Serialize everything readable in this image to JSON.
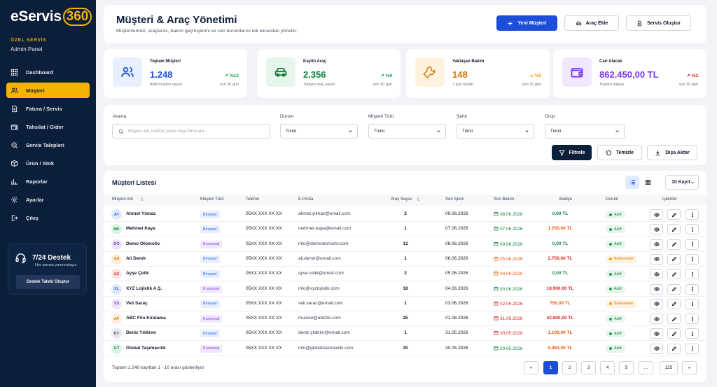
{
  "sidebar": {
    "logo_text": "eServis",
    "logo_num": "360",
    "role_label": "ÖZEL SERVİS",
    "role_sub": "Admin Panel",
    "items": [
      {
        "label": "Dashboard",
        "icon": "dashboard-icon"
      },
      {
        "label": "Müşteri",
        "icon": "users-icon",
        "active": true
      },
      {
        "label": "Fatura / Servis",
        "icon": "invoice-icon"
      },
      {
        "label": "Tahsilat / Gider",
        "icon": "wallet-icon"
      },
      {
        "label": "Servis Talepleri",
        "icon": "request-icon"
      },
      {
        "label": "Ürün / Stok",
        "icon": "box-icon"
      },
      {
        "label": "Raporlar",
        "icon": "chart-icon"
      },
      {
        "label": "Ayarlar",
        "icon": "gear-icon"
      },
      {
        "label": "Çıkış",
        "icon": "logout-icon"
      }
    ],
    "support": {
      "title": "7/24 Destek",
      "subtitle": "Her zaman yanınızdayız",
      "button": "Destek Talebi Oluştur"
    }
  },
  "header": {
    "title": "Müşteri & Araç Yönetimi",
    "subtitle": "Müşterilerinizi, araçlarını, bakım geçmişlerini ve cari durumlarını tek ekrandan yönetin.",
    "new_customer": "Yeni Müşteri",
    "add_vehicle": "Araç Ekle",
    "create_service": "Servis Oluştur"
  },
  "stats": [
    {
      "label": "Toplam Müşteri",
      "value": "1.248",
      "note": "Aktif müşteri sayısı",
      "change": "%12",
      "direction": "up",
      "period": "son 30 gün",
      "color": "#1d4ed8",
      "bg": "#e8f0ff",
      "icon": "users-icon"
    },
    {
      "label": "Kayıtlı Araç",
      "value": "2.356",
      "note": "Toplam araç sayısı",
      "change": "%8",
      "direction": "up",
      "period": "son 30 gün",
      "color": "#15803d",
      "bg": "#e6f6ec",
      "icon": "car-icon"
    },
    {
      "label": "Yaklaşan Bakım",
      "value": "148",
      "note": "7 gün içinde",
      "change": "%5",
      "direction": "down",
      "period": "son 30 gün",
      "color": "#d97706",
      "bg": "#fff3e0",
      "icon": "wrench-icon"
    },
    {
      "label": "Cari Alacak",
      "value": "862.450,00 TL",
      "note": "Toplam bakiye",
      "change": "%3",
      "direction": "up-red",
      "period": "son 30 gün",
      "color": "#7c3aed",
      "bg": "#f1e8fd",
      "icon": "wallet-icon"
    }
  ],
  "filters": {
    "search_label": "Arama",
    "search_placeholder": "Müşteri adı, telefon, plaka veya firma ara...",
    "status_label": "Durum",
    "status_value": "Tümü",
    "type_label": "Müşteri Türü",
    "type_value": "Tümü",
    "city_label": "Şehir",
    "city_value": "Tümü",
    "group_label": "Grup",
    "group_value": "Tümü",
    "filter_btn": "Filtrele",
    "clear_btn": "Temizle",
    "export_btn": "Dışa Aktar"
  },
  "list": {
    "title": "Müşteri Listesi",
    "per_page": "10 Kayıt",
    "columns": [
      "Müşteri Adı",
      "Müşteri Türü",
      "Telefon",
      "E-Posta",
      "Araç Sayısı",
      "Son İşlem",
      "Son Bakım",
      "Bakiye",
      "Durum",
      "İşlemler"
    ],
    "rows": [
      {
        "initials": "AY",
        "name": "Ahmet Yılmaz",
        "type": "Bireysel",
        "phone": "05XX XXX XX XX",
        "email": "ahmet.yilmaz@email.com",
        "vehicles": "2",
        "last_tx": "09.06.2026",
        "last_maint": "08.06.2026",
        "maint_status": "ok",
        "balance": "0,00 TL",
        "balance_status": "ok",
        "status": "Aktif",
        "avatar_color": "#2563eb",
        "avatar_bg": "#e0eaff"
      },
      {
        "initials": "MK",
        "name": "Mehmet Kaya",
        "type": "Bireysel",
        "phone": "05XX XXX XX XX",
        "email": "mehmet.kaya@email.com",
        "vehicles": "1",
        "last_tx": "07.06.2026",
        "last_maint": "07.06.2026",
        "maint_status": "ok",
        "balance": "1.250,00 TL",
        "balance_status": "warn",
        "status": "Aktif",
        "avatar_color": "#15803d",
        "avatar_bg": "#dcf5e4"
      },
      {
        "initials": "DO",
        "name": "Demo Otomotiv",
        "type": "Kurumsal",
        "phone": "05XX XXX XX XX",
        "email": "info@demootomotiv.com",
        "vehicles": "12",
        "last_tx": "08.06.2026",
        "last_maint": "09.06.2026",
        "maint_status": "ok",
        "balance": "0,00 TL",
        "balance_status": "ok",
        "status": "Aktif",
        "avatar_color": "#7c3aed",
        "avatar_bg": "#efe4fd"
      },
      {
        "initials": "AD",
        "name": "Ali Demir",
        "type": "Bireysel",
        "phone": "05XX XXX XX XX",
        "email": "ali.demir@email.com",
        "vehicles": "1",
        "last_tx": "06.06.2026",
        "last_maint": "05.06.2026",
        "maint_status": "warn",
        "balance": "2.750,00 TL",
        "balance_status": "danger",
        "status": "Beklemede",
        "avatar_color": "#d97706",
        "avatar_bg": "#fdeedb"
      },
      {
        "initials": "AÇ",
        "name": "Ayşe Çelik",
        "type": "Bireysel",
        "phone": "05XX XXX XX XX",
        "email": "ayse.celik@email.com",
        "vehicles": "2",
        "last_tx": "05.06.2026",
        "last_maint": "04.06.2026",
        "maint_status": "warn",
        "balance": "0,00 TL",
        "balance_status": "ok",
        "status": "Aktif",
        "avatar_color": "#dc2626",
        "avatar_bg": "#fde4e4"
      },
      {
        "initials": "XL",
        "name": "XYZ Lojistik A.Ş.",
        "type": "Kurumsal",
        "phone": "05XX XXX XX XX",
        "email": "info@xyzlojistik.com",
        "vehicles": "18",
        "last_tx": "04.06.2026",
        "last_maint": "03.06.2026",
        "maint_status": "ok",
        "balance": "18.900,00 TL",
        "balance_status": "danger",
        "status": "Aktif",
        "avatar_color": "#2563eb",
        "avatar_bg": "#e0eaff"
      },
      {
        "initials": "VS",
        "name": "Veli Saraç",
        "type": "Bireysel",
        "phone": "05XX XXX XX XX",
        "email": "veli.sarac@email.com",
        "vehicles": "1",
        "last_tx": "03.06.2026",
        "last_maint": "02.06.2026",
        "maint_status": "danger",
        "balance": "750,00 TL",
        "balance_status": "warn",
        "status": "Beklemede",
        "avatar_color": "#7c3aed",
        "avatar_bg": "#efe4fd"
      },
      {
        "initials": "AF",
        "name": "ABC Filo Kiralama",
        "type": "Kurumsal",
        "phone": "05XX XXX XX XX",
        "email": "musteri@abcfilo.com",
        "vehicles": "25",
        "last_tx": "01.06.2026",
        "last_maint": "31.05.2026",
        "maint_status": "danger",
        "balance": "42.600,00 TL",
        "balance_status": "danger",
        "status": "Aktif",
        "avatar_color": "#d97706",
        "avatar_bg": "#fdeedb"
      },
      {
        "initials": "DY",
        "name": "Deniz Yıldırım",
        "type": "Bireysel",
        "phone": "05XX XXX XX XX",
        "email": "deniz.yildirim@email.com",
        "vehicles": "1",
        "last_tx": "31.05.2026",
        "last_maint": "30.05.2026",
        "maint_status": "danger",
        "balance": "1.100,00 TL",
        "balance_status": "warn",
        "status": "Aktif",
        "avatar_color": "#475569",
        "avatar_bg": "#e5e9ef"
      },
      {
        "initials": "GT",
        "name": "Global Taşımacılık",
        "type": "Kurumsal",
        "phone": "05XX XXX XX XX",
        "email": "info@globaltasimacilik.com",
        "vehicles": "30",
        "last_tx": "30.05.2026",
        "last_maint": "29.05.2026",
        "maint_status": "ok",
        "balance": "9.450,00 TL",
        "balance_status": "warn",
        "status": "Aktif",
        "avatar_color": "#15803d",
        "avatar_bg": "#dcf5e4"
      }
    ],
    "footer": "Toplam 1.248 kayıttan 1 - 10 arası gösteriliyor",
    "pagination": [
      "«",
      "1",
      "2",
      "3",
      "4",
      "5",
      "...",
      "125",
      "»"
    ]
  }
}
